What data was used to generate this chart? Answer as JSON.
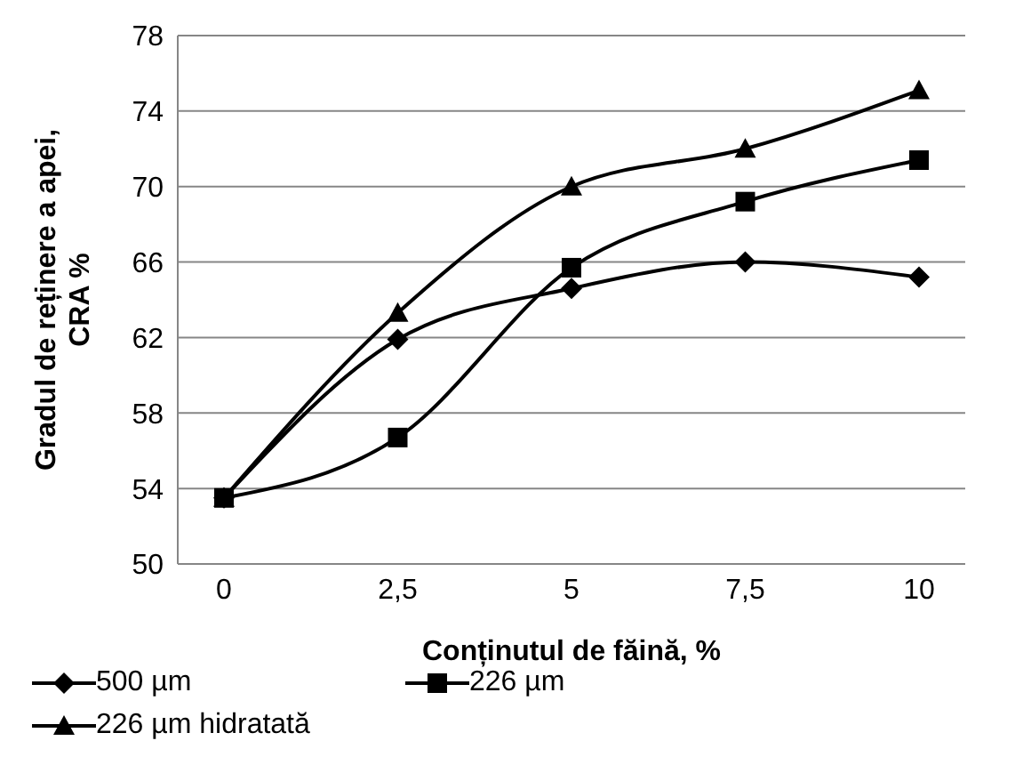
{
  "chart_data": {
    "type": "line",
    "xlabel": "Conținutul de făină, %",
    "ylabel": "Gradul de reținere a apei, CRA %",
    "categories": [
      "0",
      "2,5",
      "5",
      "7,5",
      "10"
    ],
    "series": [
      {
        "name": "500 µm",
        "color": "#000000",
        "marker": "diamond",
        "values": [
          53.5,
          61.9,
          64.6,
          66.0,
          65.2
        ]
      },
      {
        "name": "226 µm",
        "color": "#000000",
        "marker": "square",
        "values": [
          53.5,
          56.7,
          65.7,
          69.2,
          71.4
        ]
      },
      {
        "name": "226 µm hidratată",
        "color": "#000000",
        "marker": "triangle",
        "values": [
          53.5,
          63.3,
          70.0,
          72.0,
          75.1
        ]
      }
    ],
    "ylim": [
      50,
      78
    ],
    "yticks": [
      50,
      54,
      58,
      62,
      66,
      70,
      74,
      78
    ],
    "grid": "y",
    "legend": "bottom",
    "line_style": "solid"
  }
}
